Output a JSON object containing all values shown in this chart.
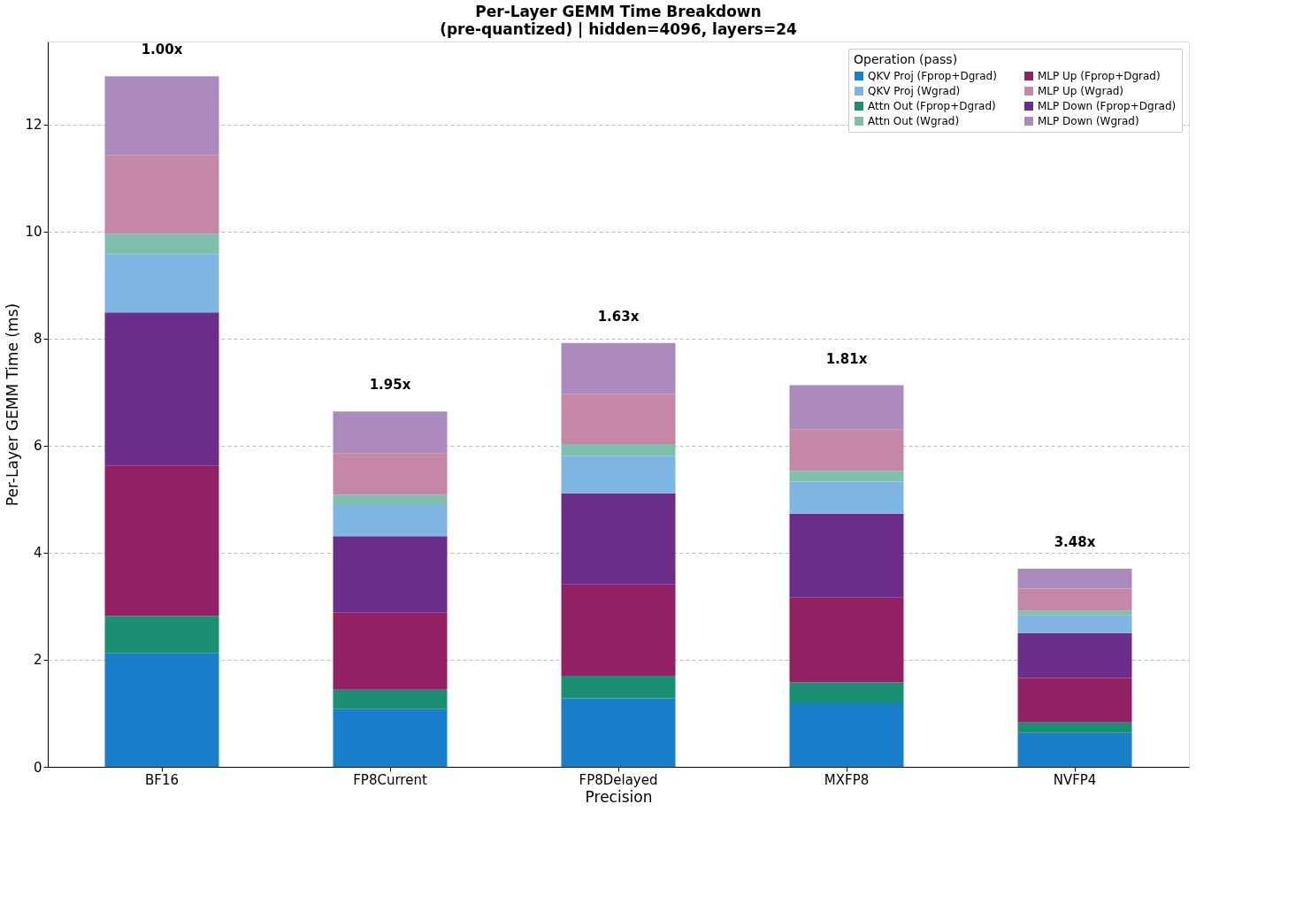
{
  "chart_data": {
    "type": "bar",
    "stacked": true,
    "title": "Per-Layer GEMM Time Breakdown",
    "subtitle": "(pre-quantized) | hidden=4096, layers=24",
    "xlabel": "Precision",
    "ylabel": "Per-Layer GEMM Time (ms)",
    "legend_title": "Operation (pass)",
    "legend": "top right",
    "grid": "y",
    "ylim": [
      0,
      13.55
    ],
    "yticks": [
      0,
      2,
      4,
      6,
      8,
      10,
      12
    ],
    "categories": [
      "BF16",
      "FP8Current",
      "FP8Delayed",
      "MXFP8",
      "NVFP4"
    ],
    "series": [
      {
        "name": "QKV Proj (Fprop+Dgrad)",
        "color": "#1a7fcb",
        "values": [
          2.12,
          1.08,
          1.28,
          1.19,
          0.63
        ]
      },
      {
        "name": "Attn Out (Fprop+Dgrad)",
        "color": "#1b8f73",
        "values": [
          0.7,
          0.36,
          0.42,
          0.39,
          0.2
        ]
      },
      {
        "name": "MLP Up (Fprop+Dgrad)",
        "color": "#922163",
        "values": [
          2.81,
          1.44,
          1.71,
          1.58,
          0.83
        ]
      },
      {
        "name": "MLP Down (Fprop+Dgrad)",
        "color": "#6b2c8a",
        "values": [
          2.86,
          1.43,
          1.7,
          1.57,
          0.84
        ]
      },
      {
        "name": "QKV Proj (Wgrad)",
        "color": "#7fb5e2",
        "values": [
          1.08,
          0.58,
          0.7,
          0.6,
          0.33
        ]
      },
      {
        "name": "Attn Out (Wgrad)",
        "color": "#7fbfad",
        "values": [
          0.39,
          0.19,
          0.22,
          0.2,
          0.09
        ]
      },
      {
        "name": "MLP Up (Wgrad)",
        "color": "#c587a8",
        "values": [
          1.47,
          0.78,
          0.94,
          0.78,
          0.41
        ]
      },
      {
        "name": "MLP Down (Wgrad)",
        "color": "#ab8bbd",
        "values": [
          1.47,
          0.78,
          0.95,
          0.82,
          0.37
        ]
      }
    ],
    "annotations": [
      {
        "text": "1.00x",
        "x": "BF16",
        "y": 12.9
      },
      {
        "text": "1.95x",
        "x": "FP8Current",
        "y": 6.64
      },
      {
        "text": "1.63x",
        "x": "FP8Delayed",
        "y": 7.92
      },
      {
        "text": "1.81x",
        "x": "MXFP8",
        "y": 7.13
      },
      {
        "text": "3.48x",
        "x": "NVFP4",
        "y": 3.7
      }
    ]
  }
}
